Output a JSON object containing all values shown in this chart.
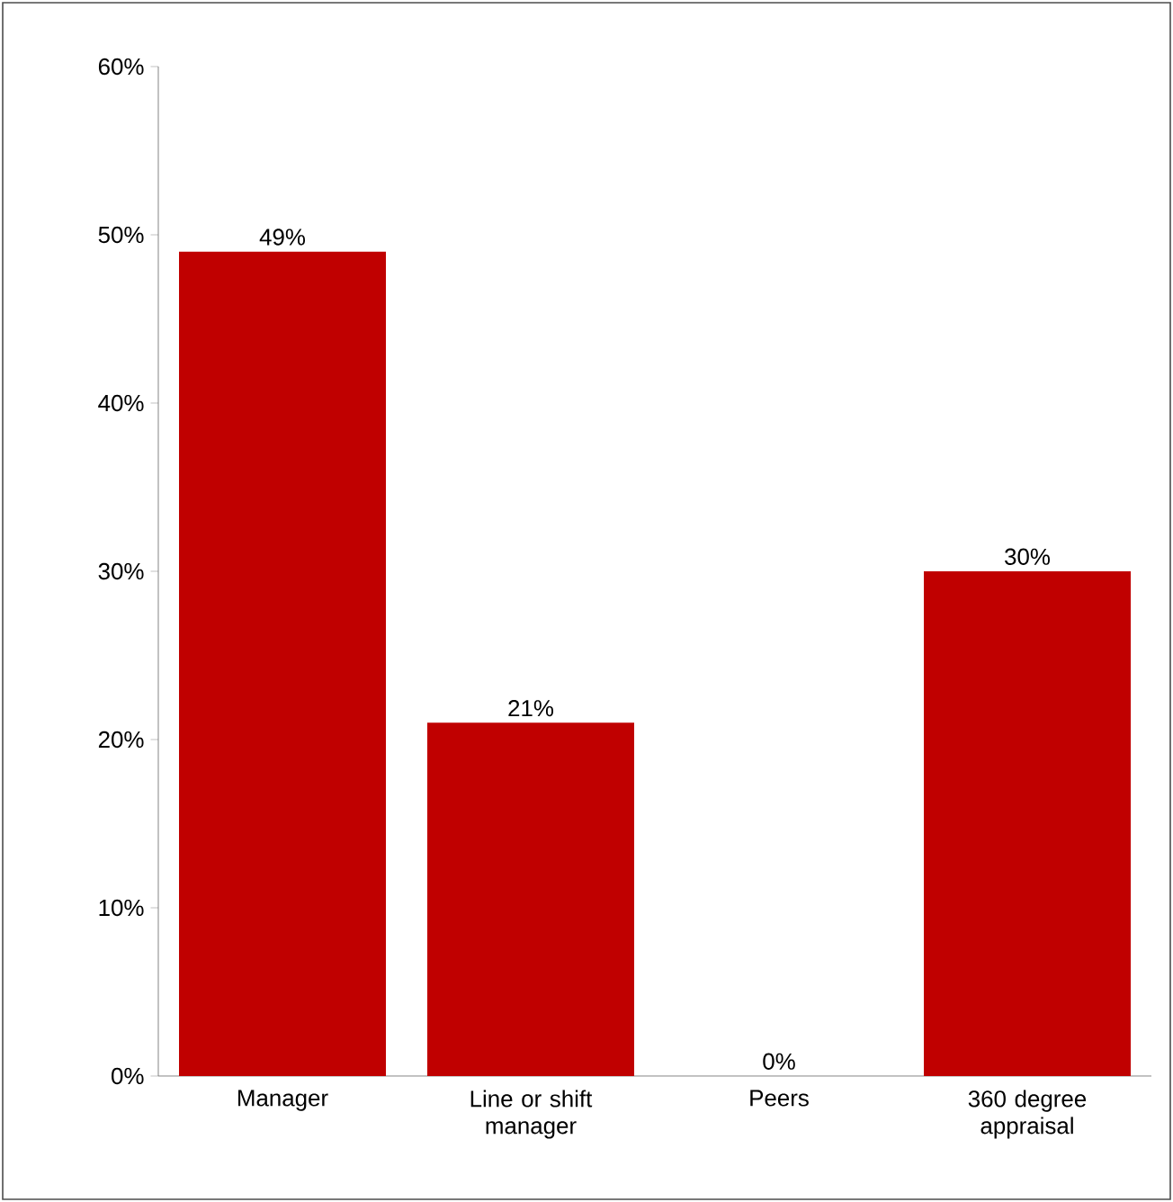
{
  "chart_data": {
    "type": "bar",
    "categories": [
      "Manager",
      "Line or shift manager",
      "Peers",
      "360 degree appraisal"
    ],
    "values": [
      49,
      21,
      0,
      30
    ],
    "value_labels": [
      "49%",
      "21%",
      "0%",
      "30%"
    ],
    "color": "#c00000",
    "ylim": [
      0,
      60
    ],
    "yticks": [
      {
        "value": 0,
        "label": "0%"
      },
      {
        "value": 10,
        "label": "10%"
      },
      {
        "value": 20,
        "label": "20%"
      },
      {
        "value": 30,
        "label": "30%"
      },
      {
        "value": 40,
        "label": "40%"
      },
      {
        "value": 50,
        "label": "50%"
      },
      {
        "value": 60,
        "label": "60%"
      }
    ],
    "grid": false
  }
}
